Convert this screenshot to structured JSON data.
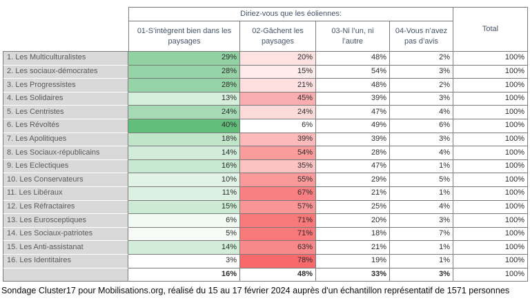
{
  "table": {
    "question": "Diriez-vous que les éoliennes:",
    "total_header": "Total",
    "columns": [
      "01-S’intègrent bien dans les paysages",
      "02-Gâchent les paysages",
      "03-Ni l’un, ni l’autre",
      "04-Vous n’avez pas d’avis"
    ],
    "rows": [
      {
        "label": "1. Les Multiculturalistes",
        "values": [
          "29%",
          "20%",
          "48%",
          "2%"
        ],
        "total": "100%"
      },
      {
        "label": "2. Les sociaux-démocrates",
        "values": [
          "28%",
          "15%",
          "54%",
          "3%"
        ],
        "total": "100%"
      },
      {
        "label": "3. Les Progressistes",
        "values": [
          "28%",
          "21%",
          "48%",
          "2%"
        ],
        "total": "100%"
      },
      {
        "label": "4. Les Solidaires",
        "values": [
          "13%",
          "45%",
          "39%",
          "3%"
        ],
        "total": "100%"
      },
      {
        "label": "5. Les Centristes",
        "values": [
          "24%",
          "24%",
          "47%",
          "4%"
        ],
        "total": "100%"
      },
      {
        "label": "6. Les Révoltés",
        "values": [
          "40%",
          "6%",
          "49%",
          "6%"
        ],
        "total": "100%"
      },
      {
        "label": "7. Les Apolitiques",
        "values": [
          "18%",
          "39%",
          "39%",
          "3%"
        ],
        "total": "100%"
      },
      {
        "label": "8. Les Sociaux-républicains",
        "values": [
          "14%",
          "54%",
          "28%",
          "4%"
        ],
        "total": "100%"
      },
      {
        "label": "9. Les Eclectiques",
        "values": [
          "16%",
          "35%",
          "47%",
          "1%"
        ],
        "total": "100%"
      },
      {
        "label": "10. Les Conservateurs",
        "values": [
          "10%",
          "55%",
          "29%",
          "5%"
        ],
        "total": "100%"
      },
      {
        "label": "11. Les Libéraux",
        "values": [
          "11%",
          "67%",
          "21%",
          "1%"
        ],
        "total": "100%"
      },
      {
        "label": "12. Les Réfractaires",
        "values": [
          "15%",
          "57%",
          "25%",
          "4%"
        ],
        "total": "100%"
      },
      {
        "label": "13. Les Eurosceptiques",
        "values": [
          "6%",
          "71%",
          "20%",
          "3%"
        ],
        "total": "100%"
      },
      {
        "label": "14. Les Sociaux-patriotes",
        "values": [
          "5%",
          "71%",
          "18%",
          "7%"
        ],
        "total": "100%"
      },
      {
        "label": "15. Les Anti-assistanat",
        "values": [
          "14%",
          "63%",
          "21%",
          "1%"
        ],
        "total": "100%"
      },
      {
        "label": "16. Les Identitaires",
        "values": [
          "3%",
          "78%",
          "19%",
          "1%"
        ],
        "total": "100%"
      }
    ],
    "totals": {
      "label": "",
      "values": [
        "16%",
        "48%",
        "33%",
        "3%"
      ],
      "total": "100%"
    }
  },
  "heatmap": {
    "green": "#63BE7B",
    "red": "#F8696B",
    "col1_min": 3,
    "col1_max": 40,
    "col2_min": 6,
    "col2_max": 78
  },
  "footer": {
    "text": "Sondage Cluster17 pour Mobilisations.org, réalisé du 15 au 17 février 2024 auprès d'un échantillon représentatif de 1571 personnes"
  },
  "chart_data": {
    "type": "table",
    "title": "Diriez-vous que les éoliennes:",
    "categories": [
      "1. Les Multiculturalistes",
      "2. Les sociaux-démocrates",
      "3. Les Progressistes",
      "4. Les Solidaires",
      "5. Les Centristes",
      "6. Les Révoltés",
      "7. Les Apolitiques",
      "8. Les Sociaux-républicains",
      "9. Les Eclectiques",
      "10. Les Conservateurs",
      "11. Les Libéraux",
      "12. Les Réfractaires",
      "13. Les Eurosceptiques",
      "14. Les Sociaux-patriotes",
      "15. Les Anti-assistanat",
      "16. Les Identitaires"
    ],
    "series": [
      {
        "name": "01-S’intègrent bien dans les paysages",
        "values": [
          29,
          28,
          28,
          13,
          24,
          40,
          18,
          14,
          16,
          10,
          11,
          15,
          6,
          5,
          14,
          3
        ]
      },
      {
        "name": "02-Gâchent les paysages",
        "values": [
          20,
          15,
          21,
          45,
          24,
          6,
          39,
          54,
          35,
          55,
          67,
          57,
          71,
          71,
          63,
          78
        ]
      },
      {
        "name": "03-Ni l’un, ni l’autre",
        "values": [
          48,
          54,
          48,
          39,
          47,
          49,
          39,
          28,
          47,
          29,
          21,
          25,
          20,
          18,
          21,
          19
        ]
      },
      {
        "name": "04-Vous n’avez pas d’avis",
        "values": [
          2,
          3,
          2,
          3,
          4,
          6,
          3,
          4,
          1,
          5,
          1,
          4,
          3,
          7,
          1,
          1
        ]
      }
    ],
    "row_total_label": "Total",
    "row_total_value": "100%",
    "column_totals": {
      "values": [
        16,
        48,
        33,
        3
      ],
      "total": "100%"
    },
    "heatmap": "column 1 shaded white-to-green by value, column 2 shaded white-to-red by value",
    "source_note": "Sondage Cluster17 pour Mobilisations.org, réalisé du 15 au 17 février 2024 auprès d'un échantillon représentatif de 1571 personnes"
  }
}
